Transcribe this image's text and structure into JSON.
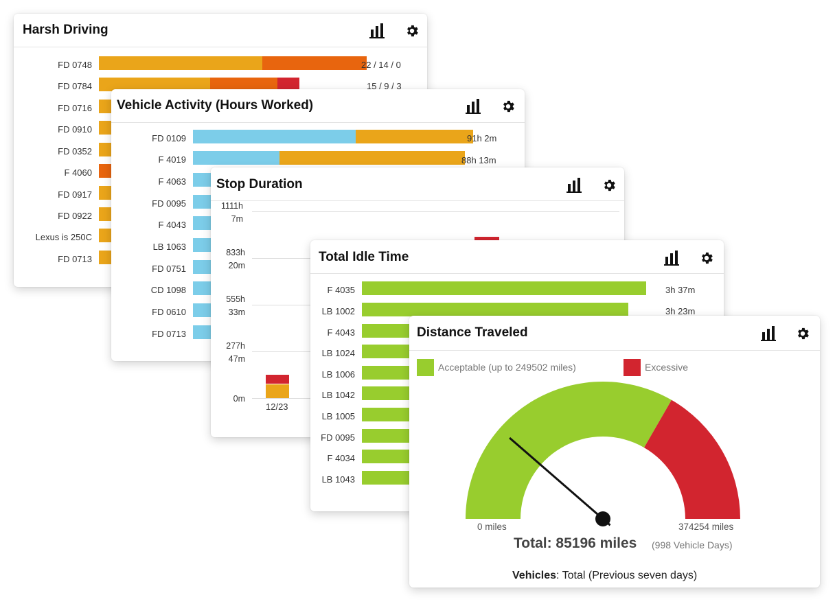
{
  "colors": {
    "orange": "#eaa51a",
    "dark_orange": "#e8650e",
    "red": "#d2252f",
    "blue": "#7ccde9",
    "green": "#98cd2e"
  },
  "harsh_driving": {
    "title": "Harsh Driving",
    "chart_icon": "bar-chart-icon",
    "settings_icon": "gear-icon",
    "rows": [
      {
        "label": "FD 0748",
        "value": "22 / 14 / 0"
      },
      {
        "label": "FD 0784",
        "value": "15 / 9 / 3"
      },
      {
        "label": "FD 0716",
        "value": ""
      },
      {
        "label": "FD 0910",
        "value": ""
      },
      {
        "label": "FD 0352",
        "value": ""
      },
      {
        "label": "F 4060",
        "value": ""
      },
      {
        "label": "FD 0917",
        "value": ""
      },
      {
        "label": "FD 0922",
        "value": ""
      },
      {
        "label": "Lexus is 250C",
        "value": ""
      },
      {
        "label": "FD 0713",
        "value": ""
      }
    ]
  },
  "vehicle_activity": {
    "title": "Vehicle Activity (Hours Worked)",
    "chart_icon": "bar-chart-icon",
    "settings_icon": "gear-icon",
    "rows": [
      {
        "label": "FD 0109",
        "value": "91h 2m"
      },
      {
        "label": "F 4019",
        "value": "88h 13m"
      },
      {
        "label": "F 4063",
        "value": ""
      },
      {
        "label": "FD 0095",
        "value": ""
      },
      {
        "label": "F 4043",
        "value": ""
      },
      {
        "label": "LB 1063",
        "value": ""
      },
      {
        "label": "FD 0751",
        "value": ""
      },
      {
        "label": "CD 1098",
        "value": ""
      },
      {
        "label": "FD 0610",
        "value": ""
      },
      {
        "label": "FD 0713",
        "value": ""
      }
    ]
  },
  "stop_duration": {
    "title": "Stop Duration",
    "chart_icon": "bar-chart-icon",
    "settings_icon": "gear-icon",
    "y_ticks": [
      {
        "line1": "1111h",
        "line2": "7m"
      },
      {
        "line1": "833h",
        "line2": "20m"
      },
      {
        "line1": "555h",
        "line2": "33m"
      },
      {
        "line1": "277h",
        "line2": "47m"
      },
      {
        "line1": "0m",
        "line2": ""
      }
    ],
    "x_label": "12/23"
  },
  "idle_time": {
    "title": "Total Idle Time",
    "chart_icon": "bar-chart-icon",
    "settings_icon": "gear-icon",
    "rows": [
      {
        "label": "F 4035",
        "value": "3h 37m"
      },
      {
        "label": "LB 1002",
        "value": "3h 23m"
      },
      {
        "label": "F 4043",
        "value": ""
      },
      {
        "label": "LB 1024",
        "value": ""
      },
      {
        "label": "LB 1006",
        "value": ""
      },
      {
        "label": "LB 1042",
        "value": ""
      },
      {
        "label": "LB 1005",
        "value": ""
      },
      {
        "label": "FD 0095",
        "value": ""
      },
      {
        "label": "F 4034",
        "value": ""
      },
      {
        "label": "LB 1043",
        "value": ""
      }
    ]
  },
  "distance": {
    "title": "Distance Traveled",
    "chart_icon": "bar-chart-icon",
    "settings_icon": "gear-icon",
    "legend_acceptable": "Acceptable (up to 249502 miles)",
    "legend_excessive": "Excessive",
    "min_label": "0 miles",
    "max_label": "374254 miles",
    "total_label": "Total: 85196 miles",
    "vehicle_days": "(998 Vehicle Days)",
    "footer_bold": "Vehicles",
    "footer_rest": ": Total (Previous seven days)"
  },
  "chart_data": [
    {
      "type": "bar",
      "title": "Harsh Driving",
      "categories": [
        "FD 0748",
        "FD 0784"
      ],
      "series": [
        {
          "values": [
            22,
            15
          ]
        },
        {
          "values": [
            14,
            9
          ]
        },
        {
          "values": [
            0,
            3
          ]
        }
      ]
    },
    {
      "type": "bar",
      "title": "Vehicle Activity (Hours Worked)",
      "categories": [
        "FD 0109",
        "F 4019"
      ],
      "values": [
        "91h 2m",
        "88h 13m"
      ]
    },
    {
      "type": "bar",
      "title": "Stop Duration",
      "categories": [
        "12/23"
      ],
      "ylim": [
        0,
        1111.12
      ]
    },
    {
      "type": "bar",
      "title": "Total Idle Time",
      "categories": [
        "F 4035",
        "LB 1002"
      ],
      "values": [
        "3h 37m",
        "3h 23m"
      ]
    },
    {
      "type": "gauge",
      "title": "Distance Traveled",
      "min": 0,
      "max": 374254,
      "threshold": 249502,
      "value": 85196
    }
  ]
}
